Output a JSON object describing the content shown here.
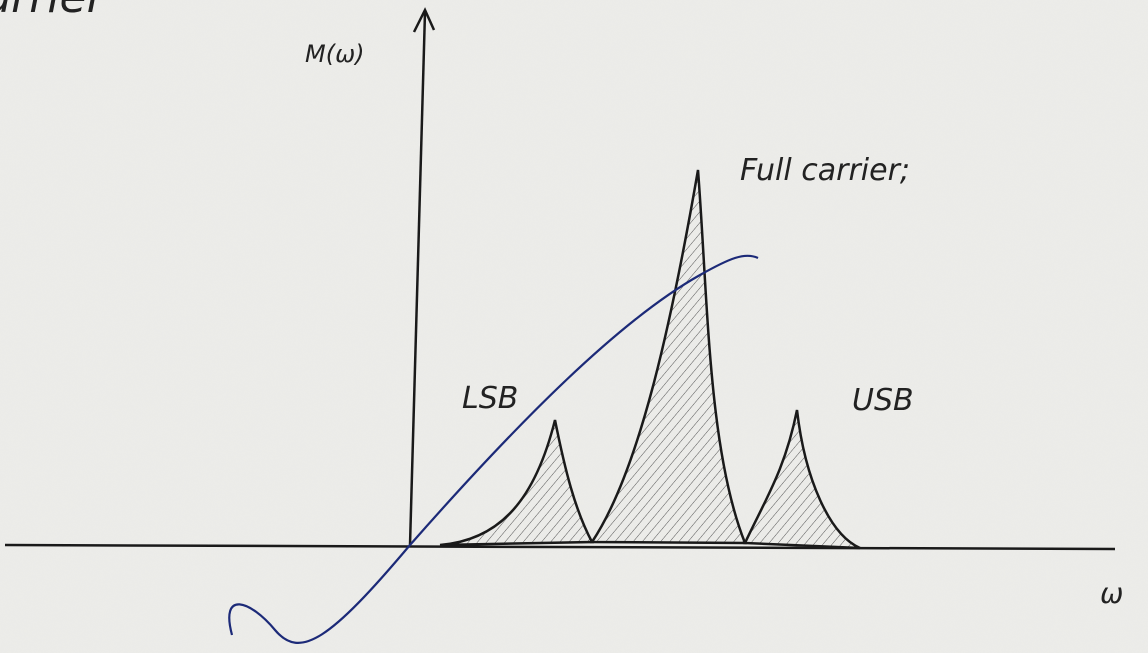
{
  "header": {
    "text": "carrier"
  },
  "axes": {
    "y_label": "M(ω)",
    "x_label": "ω"
  },
  "labels": {
    "carrier": "Full carrier;",
    "lsb": "LSB",
    "usb": "USB"
  }
}
